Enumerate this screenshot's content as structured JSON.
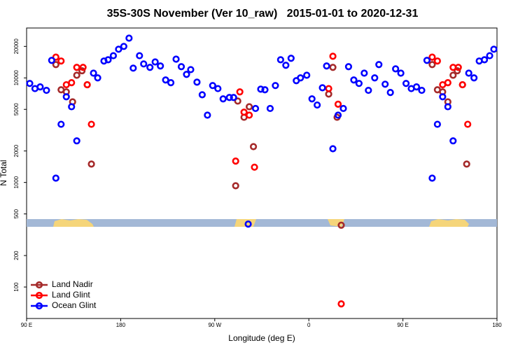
{
  "chart_data": {
    "type": "scatter",
    "title": "35S-30S November (Ver 10_raw)   2015-01-01 to 2020-12-31",
    "x_label": "Longitude (deg E)",
    "y_label": "N Total",
    "xlim": [
      90,
      540
    ],
    "xticks": [
      {
        "value": 90,
        "label": "90 E"
      },
      180,
      {
        "value": 270,
        "label": "90 W"
      },
      {
        "value": 360,
        "label": "0"
      },
      {
        "value": 450,
        "label": "90 E"
      },
      180
    ],
    "ylim": [
      50,
      30000
    ],
    "y_log": true,
    "yticks": [
      100,
      200,
      500,
      1000,
      2000,
      5000,
      10000,
      20000
    ],
    "legend": "bottom-left",
    "series": [
      {
        "name": "Land Nadir",
        "color": "#a52a2a",
        "x": [
          118,
          123,
          128,
          134,
          138,
          143,
          148,
          152,
          290,
          292,
          298,
          303,
          307,
          379,
          383,
          387,
          391,
          478,
          483,
          488,
          493,
          498,
          502,
          507,
          511
        ],
        "values": [
          13400,
          7700,
          7350,
          5900,
          10600,
          11700,
          8600,
          1500,
          930,
          6000,
          4200,
          5300,
          2200,
          7000,
          12600,
          4200,
          390,
          13400,
          7700,
          7350,
          5900,
          10600,
          11700,
          8600,
          1500
        ]
      },
      {
        "name": "Land Glint",
        "color": "#ff0000",
        "x": [
          118,
          123,
          128,
          133,
          138,
          144,
          148,
          152,
          290,
          294,
          298,
          303,
          308,
          379,
          383,
          388,
          391,
          478,
          483,
          488,
          493,
          498,
          503,
          507,
          512
        ],
        "values": [
          15800,
          14500,
          8600,
          9000,
          12600,
          12600,
          8600,
          3600,
          1600,
          7350,
          4700,
          4400,
          1400,
          7900,
          16100,
          5600,
          69,
          15800,
          14500,
          8600,
          9000,
          12600,
          12600,
          8600,
          3600
        ]
      },
      {
        "name": "Ocean Glint",
        "color": "#0000ff",
        "x": [
          93,
          98,
          103,
          109,
          114,
          118,
          123,
          128,
          133,
          138,
          154,
          158,
          164,
          168,
          173,
          178,
          183,
          188,
          192,
          198,
          202,
          208,
          213,
          218,
          223,
          228,
          233,
          238,
          243,
          247,
          253,
          258,
          263,
          268,
          273,
          278,
          284,
          288,
          302,
          309,
          314,
          318,
          323,
          328,
          333,
          338,
          343,
          348,
          352,
          358,
          363,
          368,
          373,
          377,
          383,
          388,
          393,
          398,
          403,
          408,
          413,
          417,
          423,
          427,
          433,
          438,
          443,
          448,
          453,
          458,
          463,
          468,
          473,
          478,
          483,
          488,
          493,
          498,
          513,
          518,
          523,
          528,
          533,
          537
        ],
        "values": [
          8850,
          7900,
          8200,
          7600,
          14700,
          1100,
          3600,
          6600,
          5300,
          2500,
          11100,
          10000,
          14500,
          14900,
          16300,
          18800,
          20000,
          24000,
          12400,
          16300,
          13600,
          12600,
          14200,
          13000,
          9550,
          9000,
          15100,
          12800,
          10800,
          12000,
          9100,
          6900,
          4400,
          8450,
          7900,
          6300,
          6500,
          6500,
          400,
          5100,
          7800,
          7700,
          5100,
          8450,
          14900,
          13200,
          15400,
          9400,
          10000,
          10600,
          6300,
          5500,
          8050,
          13000,
          2100,
          4400,
          5100,
          12800,
          9550,
          8850,
          11100,
          7600,
          10000,
          13400,
          8700,
          7250,
          12200,
          11100,
          8850,
          7900,
          8200,
          7600,
          14700,
          1100,
          3600,
          6600,
          5300,
          2500,
          11100,
          10000,
          14500,
          14900,
          16300,
          18800
        ]
      }
    ]
  }
}
